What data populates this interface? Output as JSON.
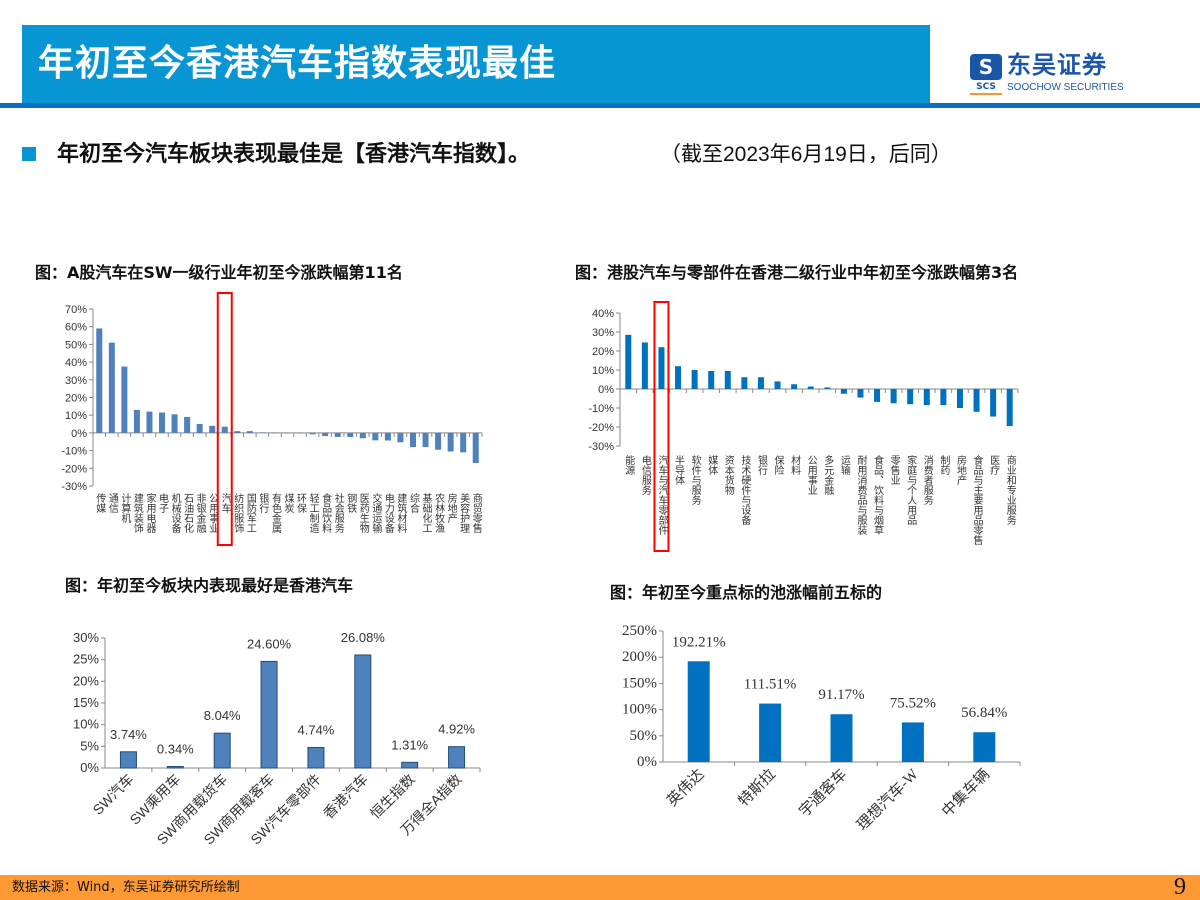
{
  "header": {
    "title": "年初至今香港汽车指数表现最佳"
  },
  "logo": {
    "mark": "S",
    "scs": "SCS",
    "name_cn": "东吴证券",
    "name_en": "SOOCHOW SECURITIES"
  },
  "lead": {
    "text": "年初至今汽车板块表现最佳是【香港汽车指数】。",
    "note": "（截至2023年6月19日，后同）"
  },
  "colors": {
    "title_bg": "#0795d4",
    "rule": "#0a6fbf",
    "bar_steel": "#4f81bd",
    "bar_blue": "#0070c0",
    "highlight": "#ff0000",
    "footer": "#ff9933"
  },
  "footer": {
    "source": "数据来源：Wind，东吴证券研究所绘制",
    "page": "9"
  },
  "chart_data": [
    {
      "type": "bar",
      "title": "图：A股汽车在SW一级行业年初至今涨跌幅第11名",
      "ylim": [
        -30,
        70
      ],
      "yticks": [
        "-30%",
        "-20%",
        "-10%",
        "0%",
        "10%",
        "20%",
        "30%",
        "40%",
        "50%",
        "60%",
        "70%"
      ],
      "highlight": "汽车",
      "categories": [
        "传媒",
        "通信",
        "计算机",
        "建筑装饰",
        "家用电器",
        "电子",
        "机械设备",
        "石油石化",
        "非银金融",
        "公用事业",
        "汽车",
        "纺织服饰",
        "国防军工",
        "银行",
        "有色金属",
        "煤炭",
        "环保",
        "轻工制造",
        "食品饮料",
        "社会服务",
        "钢铁",
        "医药生物",
        "交通运输",
        "电力设备",
        "建筑材料",
        "综合",
        "基础化工",
        "农林牧渔",
        "房地产",
        "美容护理",
        "商贸零售"
      ],
      "values": [
        59,
        51,
        37.5,
        13,
        12,
        11.5,
        10.5,
        9,
        5,
        4,
        3.5,
        1,
        1,
        0.3,
        0.1,
        0,
        -0.2,
        -0.8,
        -1.8,
        -2.3,
        -2.3,
        -3,
        -4.2,
        -4.3,
        -5.3,
        -8,
        -8,
        -9.5,
        -10.5,
        -11,
        -17
      ]
    },
    {
      "type": "bar",
      "title": "图：港股汽车与零部件在香港二级行业中年初至今涨跌幅第3名",
      "ylim": [
        -30,
        40
      ],
      "yticks": [
        "-30%",
        "-20%",
        "-10%",
        "0%",
        "10%",
        "20%",
        "30%",
        "40%"
      ],
      "highlight": "汽车与汽车零部件",
      "categories": [
        "能源",
        "电信服务",
        "汽车与汽车零部件",
        "半导体",
        "软件与服务",
        "媒体",
        "资本货物",
        "技术硬件与设备",
        "银行",
        "保险",
        "材料",
        "公用事业",
        "多元金融",
        "运输",
        "耐用消费品与服装",
        "食品、饮料与烟草",
        "零售业",
        "家庭与个人用品",
        "消费者服务",
        "制药",
        "房地产",
        "食品与主要用品零售",
        "医疗",
        "商业和专业服务"
      ],
      "values": [
        28.5,
        24.5,
        22,
        12,
        10,
        9.5,
        9.5,
        6.2,
        6.2,
        4,
        2.5,
        1.3,
        0.8,
        -2.5,
        -4.5,
        -6.8,
        -7.5,
        -8,
        -8.5,
        -8.5,
        -10,
        -12,
        -14.5,
        -19.5
      ]
    },
    {
      "type": "bar",
      "title": "图：年初至今板块内表现最好是香港汽车",
      "ylim": [
        0,
        30
      ],
      "yticks": [
        "0%",
        "5%",
        "10%",
        "15%",
        "20%",
        "25%",
        "30%"
      ],
      "categories": [
        "SW汽车",
        "SW乘用车",
        "SW商用载货车",
        "SW商用载客车",
        "SW汽车零部件",
        "香港汽车",
        "恒生指数",
        "万得全A指数"
      ],
      "values": [
        3.74,
        0.34,
        8.04,
        24.6,
        4.74,
        26.08,
        1.31,
        4.92
      ],
      "labels": [
        "3.74%",
        "0.34%",
        "8.04%",
        "24.60%",
        "4.74%",
        "26.08%",
        "1.31%",
        "4.92%"
      ]
    },
    {
      "type": "bar",
      "title": "图：年初至今重点标的池涨幅前五标的",
      "ylim": [
        0,
        250
      ],
      "yticks": [
        "0%",
        "50%",
        "100%",
        "150%",
        "200%",
        "250%"
      ],
      "categories": [
        "英伟达",
        "特斯拉",
        "宇通客车",
        "理想汽车-W",
        "中集车辆"
      ],
      "values": [
        192.21,
        111.51,
        91.17,
        75.52,
        56.84
      ],
      "labels": [
        "192.21%",
        "111.51%",
        "91.17%",
        "75.52%",
        "56.84%"
      ]
    }
  ]
}
